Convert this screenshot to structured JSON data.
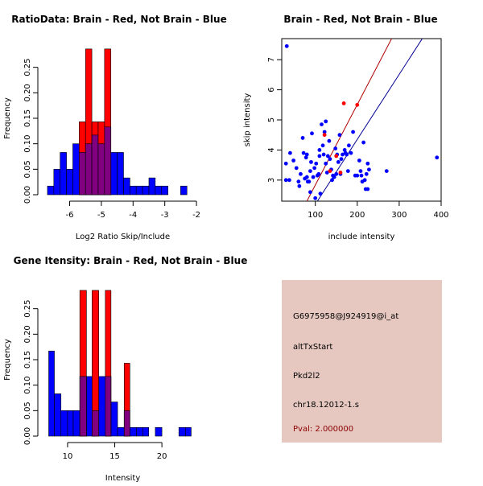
{
  "colors": {
    "brain": "#ff0000",
    "not_brain": "#0000ff",
    "overlap": "#800080",
    "info_bg": "#e6c8c0",
    "pval": "#8b0000",
    "brain_line": "#b00000",
    "not_brain_line": "#000090"
  },
  "chart_data": [
    {
      "id": "ratio-hist",
      "type": "bar",
      "title": "RatioData: Brain - Red, Not Brain - Blue",
      "xlabel": "Log2 Ratio Skip/Include",
      "ylabel": "Frequency",
      "xlim": [
        -6.75,
        -1.9
      ],
      "ylim": [
        0,
        0.3
      ],
      "xticks": [
        -6,
        -5,
        -4,
        -3,
        -2
      ],
      "yticks": [
        0.0,
        0.05,
        0.1,
        0.15,
        0.2,
        0.25
      ],
      "ytick_labels": [
        "0.00",
        "0.05",
        "0.10",
        "0.15",
        "0.20",
        "0.25"
      ],
      "series": [
        {
          "name": "Not Brain",
          "color": "blue",
          "bins": [
            {
              "x0": -6.7,
              "x1": -6.5,
              "y": 0.017
            },
            {
              "x0": -6.5,
              "x1": -6.3,
              "y": 0.05
            },
            {
              "x0": -6.3,
              "x1": -6.1,
              "y": 0.083
            },
            {
              "x0": -6.1,
              "x1": -5.9,
              "y": 0.05
            },
            {
              "x0": -5.9,
              "x1": -5.7,
              "y": 0.1
            },
            {
              "x0": -5.7,
              "x1": -5.5,
              "y": 0.083
            },
            {
              "x0": -5.5,
              "x1": -5.3,
              "y": 0.1
            },
            {
              "x0": -5.3,
              "x1": -5.1,
              "y": 0.117
            },
            {
              "x0": -5.1,
              "x1": -4.9,
              "y": 0.1
            },
            {
              "x0": -4.9,
              "x1": -4.7,
              "y": 0.133
            },
            {
              "x0": -4.7,
              "x1": -4.5,
              "y": 0.083
            },
            {
              "x0": -4.5,
              "x1": -4.3,
              "y": 0.083
            },
            {
              "x0": -4.3,
              "x1": -4.1,
              "y": 0.033
            },
            {
              "x0": -4.1,
              "x1": -3.9,
              "y": 0.017
            },
            {
              "x0": -3.9,
              "x1": -3.7,
              "y": 0.017
            },
            {
              "x0": -3.7,
              "x1": -3.5,
              "y": 0.017
            },
            {
              "x0": -3.5,
              "x1": -3.3,
              "y": 0.033
            },
            {
              "x0": -3.3,
              "x1": -3.1,
              "y": 0.017
            },
            {
              "x0": -3.1,
              "x1": -2.9,
              "y": 0.017
            },
            {
              "x0": -2.5,
              "x1": -2.3,
              "y": 0.017
            }
          ]
        },
        {
          "name": "Brain",
          "color": "red",
          "bins": [
            {
              "x0": -5.7,
              "x1": -5.5,
              "y": 0.143
            },
            {
              "x0": -5.5,
              "x1": -5.3,
              "y": 0.286
            },
            {
              "x0": -5.3,
              "x1": -5.1,
              "y": 0.143
            },
            {
              "x0": -5.1,
              "x1": -4.9,
              "y": 0.143
            },
            {
              "x0": -4.9,
              "x1": -4.7,
              "y": 0.286
            }
          ]
        }
      ]
    },
    {
      "id": "scatter",
      "type": "scatter",
      "title": "Brain - Red, Not Brain - Blue",
      "xlabel": "include intensity",
      "ylabel": "skip intensity",
      "xlim": [
        20,
        400
      ],
      "ylim": [
        2.3,
        7.7
      ],
      "xticks": [
        100,
        200,
        300,
        400
      ],
      "yticks": [
        3,
        4,
        5,
        6,
        7
      ],
      "series": [
        {
          "name": "Not Brain",
          "color": "blue",
          "points": [
            [
              32,
              7.45
            ],
            [
              30,
              3.55
            ],
            [
              30,
              3.0
            ],
            [
              38,
              3.0
            ],
            [
              40,
              3.9
            ],
            [
              48,
              3.65
            ],
            [
              55,
              3.4
            ],
            [
              60,
              2.95
            ],
            [
              62,
              2.8
            ],
            [
              65,
              3.2
            ],
            [
              70,
              4.4
            ],
            [
              72,
              3.9
            ],
            [
              75,
              3.05
            ],
            [
              78,
              3.75
            ],
            [
              80,
              3.1
            ],
            [
              80,
              3.85
            ],
            [
              82,
              2.95
            ],
            [
              85,
              2.95
            ],
            [
              88,
              2.6
            ],
            [
              88,
              3.3
            ],
            [
              90,
              3.6
            ],
            [
              92,
              4.55
            ],
            [
              95,
              3.1
            ],
            [
              98,
              3.4
            ],
            [
              100,
              2.4
            ],
            [
              102,
              3.55
            ],
            [
              105,
              3.15
            ],
            [
              108,
              3.2
            ],
            [
              110,
              4.0
            ],
            [
              110,
              3.8
            ],
            [
              112,
              2.55
            ],
            [
              115,
              4.85
            ],
            [
              118,
              4.15
            ],
            [
              120,
              3.85
            ],
            [
              122,
              4.6
            ],
            [
              125,
              3.55
            ],
            [
              125,
              4.95
            ],
            [
              128,
              3.25
            ],
            [
              130,
              3.8
            ],
            [
              133,
              4.3
            ],
            [
              135,
              3.7
            ],
            [
              138,
              3.35
            ],
            [
              140,
              3.0
            ],
            [
              142,
              3.15
            ],
            [
              145,
              3.1
            ],
            [
              148,
              4.05
            ],
            [
              150,
              3.2
            ],
            [
              152,
              3.85
            ],
            [
              155,
              3.6
            ],
            [
              158,
              4.5
            ],
            [
              160,
              3.2
            ],
            [
              162,
              3.7
            ],
            [
              165,
              3.85
            ],
            [
              170,
              4.0
            ],
            [
              172,
              3.9
            ],
            [
              175,
              3.85
            ],
            [
              178,
              3.3
            ],
            [
              180,
              4.15
            ],
            [
              185,
              3.9
            ],
            [
              190,
              4.6
            ],
            [
              195,
              3.15
            ],
            [
              200,
              3.15
            ],
            [
              205,
              3.65
            ],
            [
              208,
              3.3
            ],
            [
              210,
              3.15
            ],
            [
              212,
              2.95
            ],
            [
              215,
              4.25
            ],
            [
              218,
              3.0
            ],
            [
              220,
              2.7
            ],
            [
              222,
              3.2
            ],
            [
              225,
              2.7
            ],
            [
              225,
              3.55
            ],
            [
              228,
              3.35
            ],
            [
              270,
              3.3
            ],
            [
              390,
              3.75
            ]
          ]
        },
        {
          "name": "Brain",
          "color": "red",
          "points": [
            [
              122,
              4.5
            ],
            [
              135,
              3.3
            ],
            [
              150,
              3.8
            ],
            [
              160,
              3.25
            ],
            [
              168,
              5.55
            ],
            [
              200,
              5.5
            ]
          ]
        }
      ],
      "lines": [
        {
          "name": "Brain fit",
          "color": "brain_line",
          "x0": 80,
          "y0": 2.3,
          "x1": 282,
          "y1": 7.7
        },
        {
          "name": "Not Brain fit",
          "color": "not_brain_line",
          "x0": 105,
          "y0": 2.3,
          "x1": 355,
          "y1": 7.7
        }
      ]
    },
    {
      "id": "intensity-hist",
      "type": "bar",
      "title": "Gene Itensity: Brain - Red, Not Brain - Blue",
      "xlabel": "Intensity",
      "ylabel": "Frequency",
      "xlim": [
        7.7,
        24
      ],
      "ylim": [
        0,
        0.3
      ],
      "xticks": [
        10,
        15,
        20
      ],
      "yticks": [
        0.0,
        0.05,
        0.1,
        0.15,
        0.2,
        0.25
      ],
      "ytick_labels": [
        "0.00",
        "0.05",
        "0.10",
        "0.15",
        "0.20",
        "0.25"
      ],
      "series": [
        {
          "name": "Not Brain",
          "color": "blue",
          "bins": [
            {
              "x0": 8.0,
              "x1": 8.6,
              "y": 0.167
            },
            {
              "x0": 8.6,
              "x1": 9.3,
              "y": 0.083
            },
            {
              "x0": 9.3,
              "x1": 10.0,
              "y": 0.05
            },
            {
              "x0": 10.0,
              "x1": 10.6,
              "y": 0.05
            },
            {
              "x0": 10.6,
              "x1": 11.3,
              "y": 0.05
            },
            {
              "x0": 11.3,
              "x1": 12.0,
              "y": 0.117
            },
            {
              "x0": 12.0,
              "x1": 12.6,
              "y": 0.117
            },
            {
              "x0": 12.6,
              "x1": 13.3,
              "y": 0.05
            },
            {
              "x0": 13.3,
              "x1": 14.0,
              "y": 0.117
            },
            {
              "x0": 14.0,
              "x1": 14.6,
              "y": 0.117
            },
            {
              "x0": 14.6,
              "x1": 15.3,
              "y": 0.067
            },
            {
              "x0": 15.3,
              "x1": 16.0,
              "y": 0.017
            },
            {
              "x0": 16.0,
              "x1": 16.6,
              "y": 0.05
            },
            {
              "x0": 16.6,
              "x1": 17.3,
              "y": 0.017
            },
            {
              "x0": 17.3,
              "x1": 18.0,
              "y": 0.017
            },
            {
              "x0": 18.0,
              "x1": 18.6,
              "y": 0.017
            },
            {
              "x0": 19.3,
              "x1": 20.0,
              "y": 0.017
            },
            {
              "x0": 21.8,
              "x1": 22.5,
              "y": 0.017
            },
            {
              "x0": 22.5,
              "x1": 23.1,
              "y": 0.017
            }
          ]
        },
        {
          "name": "Brain",
          "color": "red",
          "bins": [
            {
              "x0": 11.3,
              "x1": 12.0,
              "y": 0.286
            },
            {
              "x0": 12.6,
              "x1": 13.3,
              "y": 0.286
            },
            {
              "x0": 14.0,
              "x1": 14.6,
              "y": 0.286
            },
            {
              "x0": 16.0,
              "x1": 16.6,
              "y": 0.143
            }
          ]
        }
      ]
    }
  ],
  "info": {
    "probe_id": "G6975958@J924919@i_at",
    "event_type": "altTxStart",
    "gene": "Pkd2l2",
    "location": "chr18.12012-1.s",
    "pval": "Pval: 2.000000"
  }
}
